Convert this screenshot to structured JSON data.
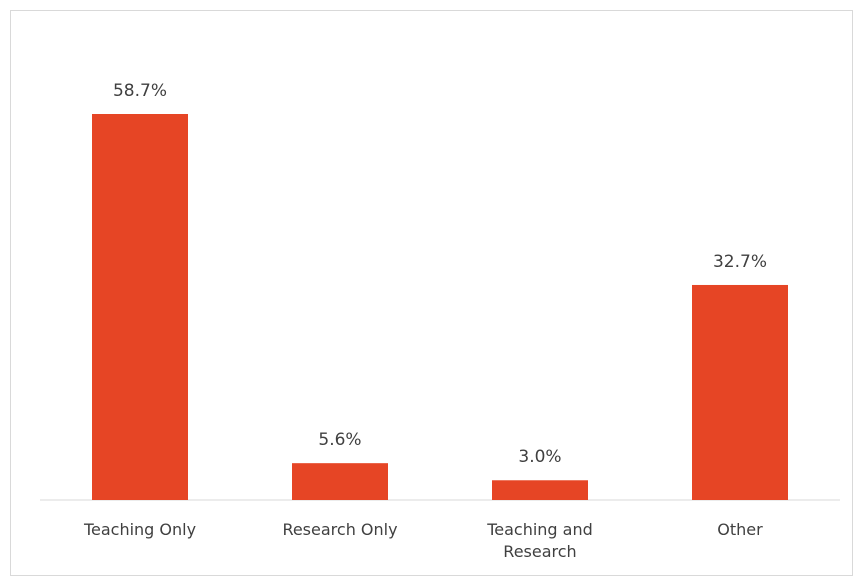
{
  "chart_data": {
    "type": "bar",
    "categories": [
      "Teaching Only",
      "Research Only",
      "Teaching and Research",
      "Other"
    ],
    "values": [
      58.7,
      5.6,
      3.0,
      32.7
    ],
    "value_labels": [
      "58.7%",
      "5.6%",
      "3.0%",
      "32.7%"
    ],
    "color": "#e64525"
  }
}
